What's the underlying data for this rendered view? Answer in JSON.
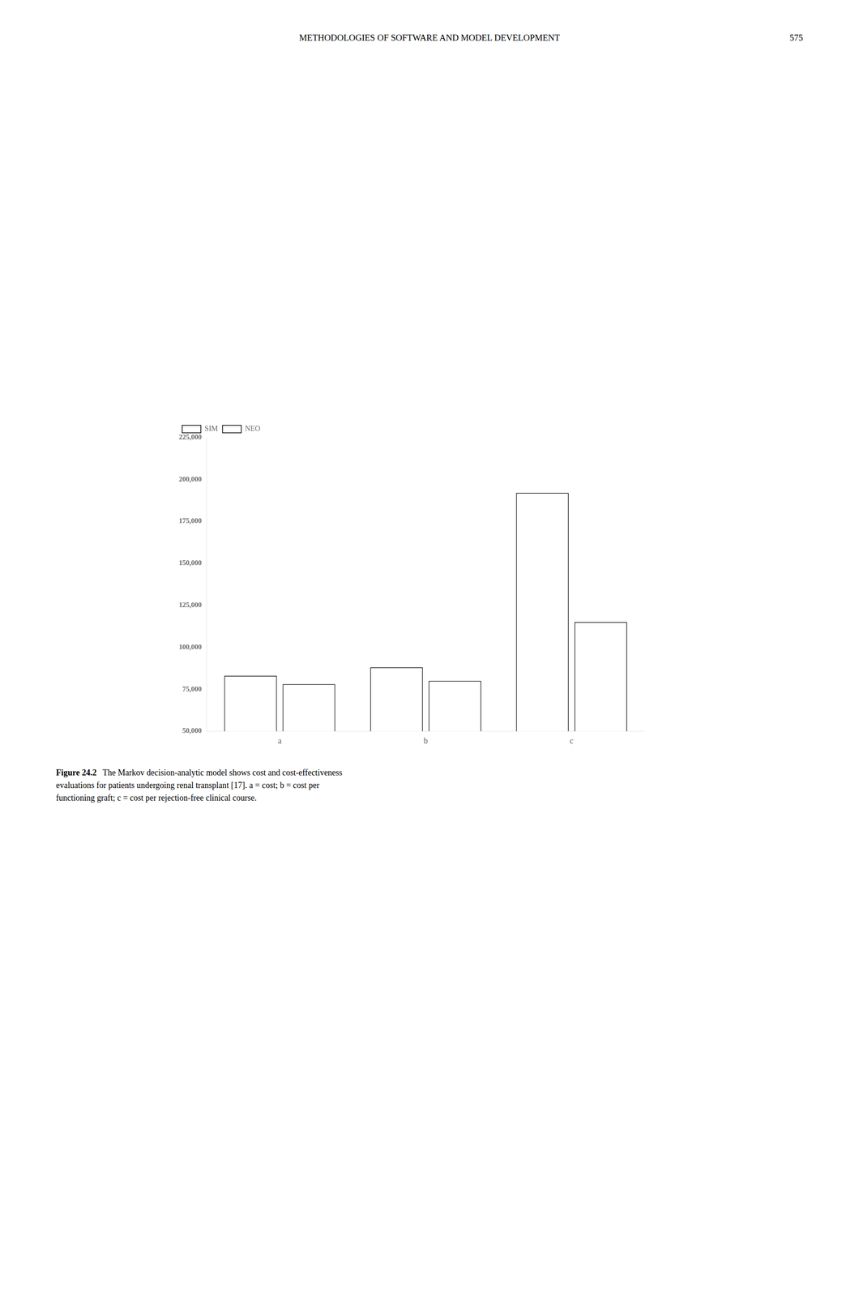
{
  "chart_data": {
    "type": "bar",
    "categories": [
      "a",
      "b",
      "c"
    ],
    "series": [
      {
        "name": "SIM",
        "color": "#ffffff",
        "values": [
          83000,
          88000,
          192000
        ]
      },
      {
        "name": "NEO",
        "color": "#ffffff",
        "values": [
          78000,
          80000,
          115000
        ]
      }
    ],
    "ylim": [
      50000,
      225000
    ],
    "yticks": [
      {
        "value": 50000,
        "label": "50,000"
      },
      {
        "value": 75000,
        "label": "75,000"
      },
      {
        "value": 100000,
        "label": "100,000"
      },
      {
        "value": 125000,
        "label": "125,000"
      },
      {
        "value": 150000,
        "label": "150,000"
      },
      {
        "value": 175000,
        "label": "175,000"
      },
      {
        "value": 200000,
        "label": "200,000"
      },
      {
        "value": 225000,
        "label": "225,000"
      }
    ],
    "grid": false,
    "legend": "upper left",
    "annotations": [
      "METHODOLOGIES OF SOFTWARE AND MODEL DEVELOPMENT",
      "575",
      "Figure 24.2",
      "   The Markov decision-analytic model shows cost and cost-effectiveness\nevaluations for patients undergoing renal transplant [17]. a = cost; b = cost per\nfunctioning graft; c = cost per rejection-free clinical course."
    ]
  }
}
